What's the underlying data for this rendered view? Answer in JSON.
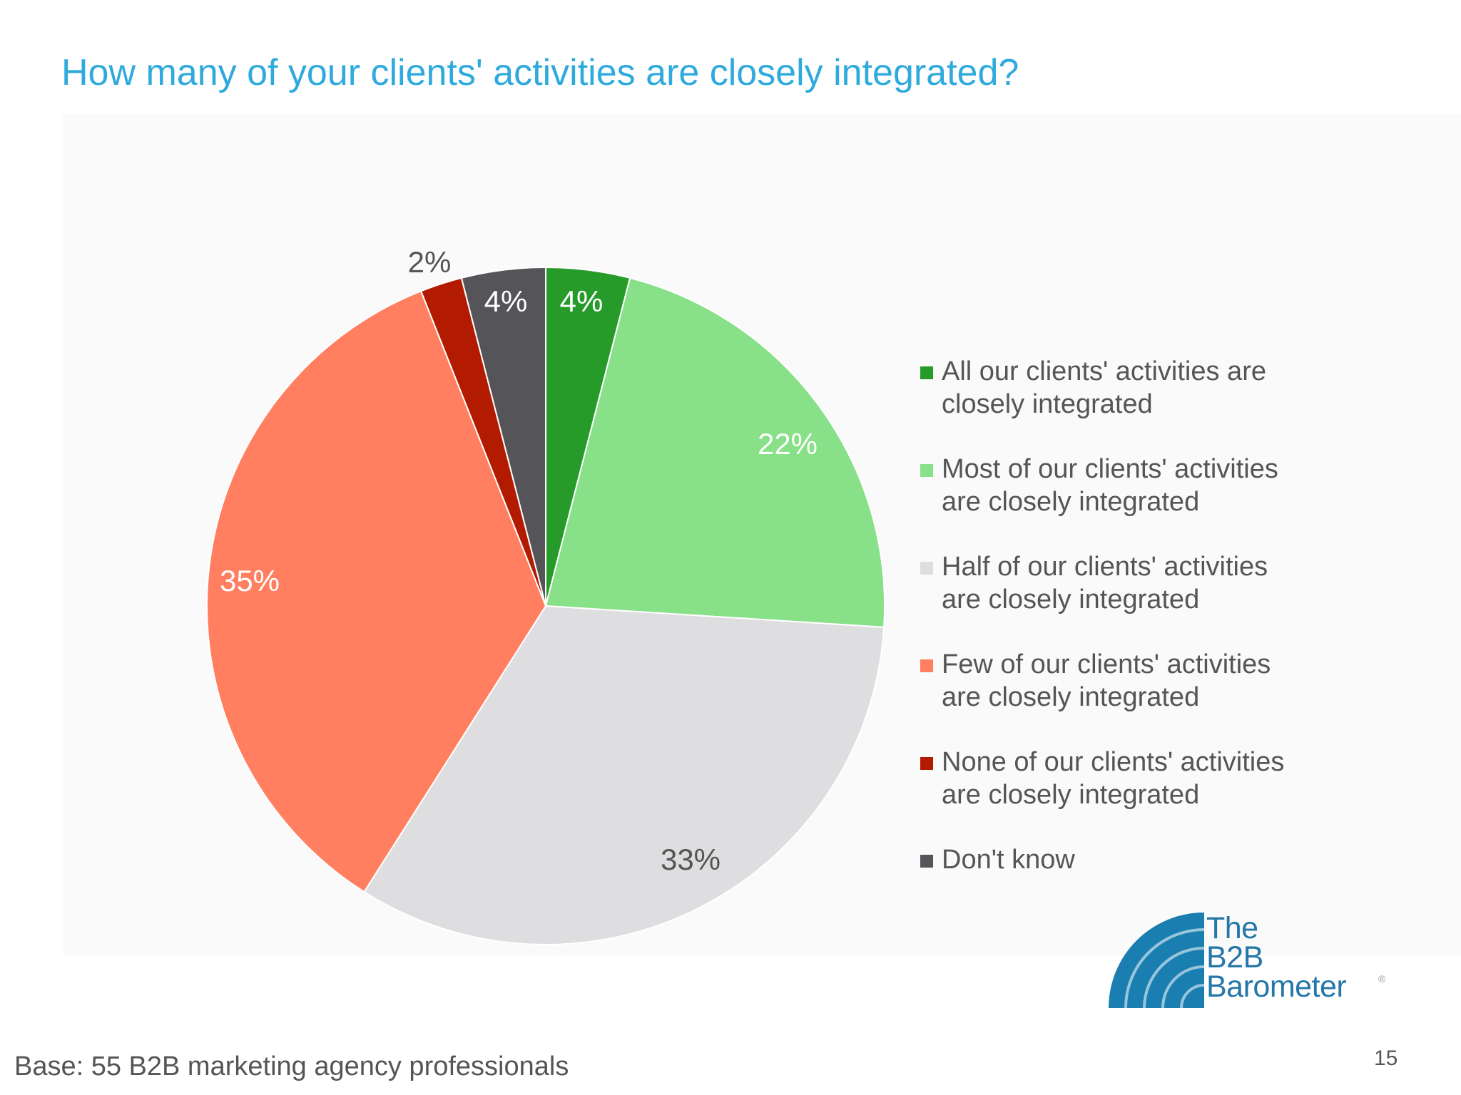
{
  "slide": {
    "title": "How many of your clients' activities are closely integrated?",
    "base_note": "Base: 55 B2B marketing agency professionals",
    "page_number": "15"
  },
  "logo": {
    "text": "The\nB2B\nBarometer",
    "trademark": "®",
    "color": "#1a7fb0"
  },
  "chart_data": {
    "type": "pie",
    "start_angle_deg": 0,
    "direction": "clockwise",
    "slices": [
      {
        "label": "All our clients' activities are closely integrated",
        "value": 4,
        "display": "4%",
        "color": "#279b2a",
        "label_color": "#ffffff"
      },
      {
        "label": "Most of our clients' activities are closely integrated",
        "value": 22,
        "display": "22%",
        "color": "#88e088",
        "label_color": "#ffffff"
      },
      {
        "label": "Half of our clients' activities are closely integrated",
        "value": 33,
        "display": "33%",
        "color": "#dedddf",
        "label_color": "#555555"
      },
      {
        "label": "Few of our clients' activities are closely integrated",
        "value": 35,
        "display": "35%",
        "color": "#ff7f60",
        "label_color": "#ffffff"
      },
      {
        "label": "None of our clients' activities are closely integrated",
        "value": 2,
        "display": "2%",
        "color": "#b31b00",
        "label_color": "#555555"
      },
      {
        "label": "Don't know",
        "value": 4,
        "display": "4%",
        "color": "#555458",
        "label_color": "#ffffff"
      }
    ],
    "legend": {
      "position": "right",
      "entries": [
        "All our clients' activities are\nclosely integrated",
        "Most of our clients' activities\nare closely integrated",
        "Half of our clients' activities\nare closely integrated",
        "Few of our clients' activities\nare closely integrated",
        "None of our clients' activities\nare closely integrated",
        "Don't know"
      ]
    }
  }
}
